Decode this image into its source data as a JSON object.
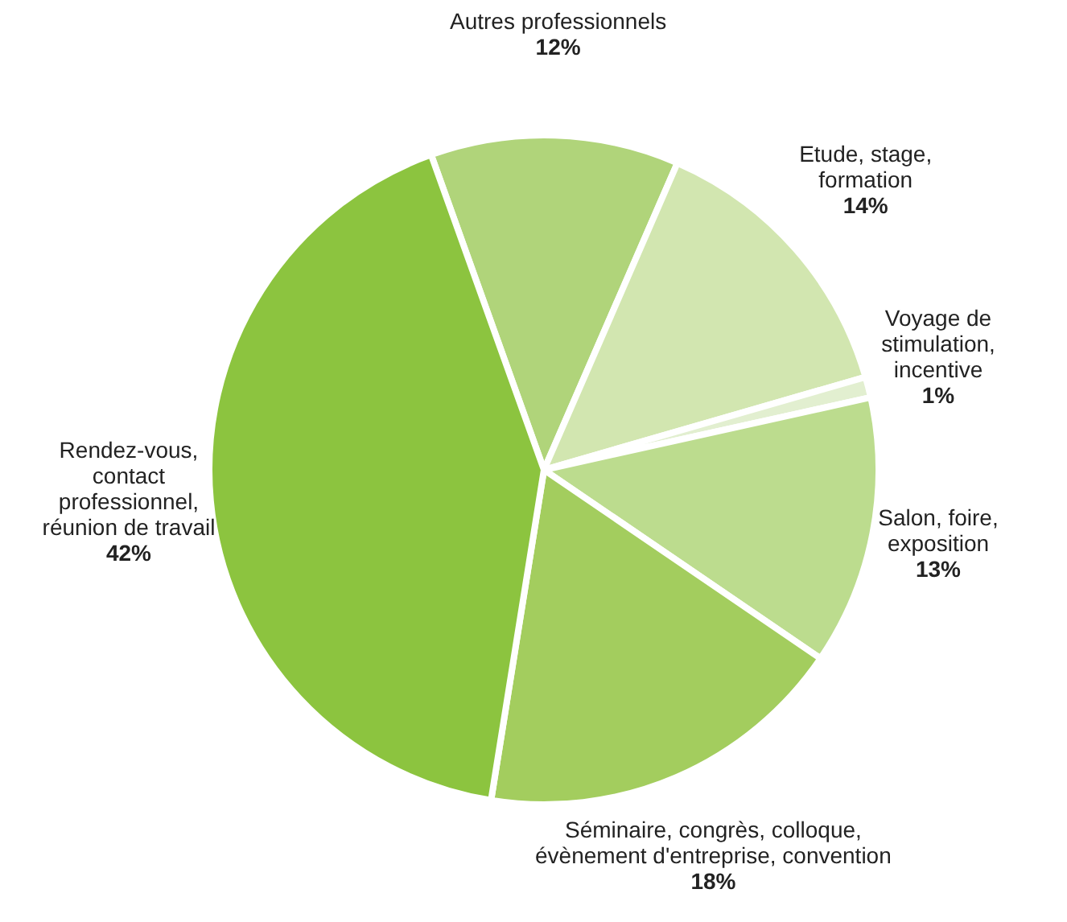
{
  "chart_data": {
    "type": "pie",
    "categories": [
      "Autres professionnels",
      "Etude, stage, formation",
      "Voyage de stimulation, incentive",
      "Salon, foire, exposition",
      "Séminaire, congrès, colloque, évènement d'entreprise, convention",
      "Rendez-vous, contact professionnel, réunion de travail"
    ],
    "values": [
      12,
      14,
      1,
      13,
      18,
      42
    ],
    "value_labels": [
      "12%",
      "14%",
      "1%",
      "13%",
      "18%",
      "42%"
    ],
    "colors": [
      "#b0d47a",
      "#d2e6b0",
      "#e2efd0",
      "#bcdc8e",
      "#a3cd5e",
      "#8cc43f"
    ]
  }
}
